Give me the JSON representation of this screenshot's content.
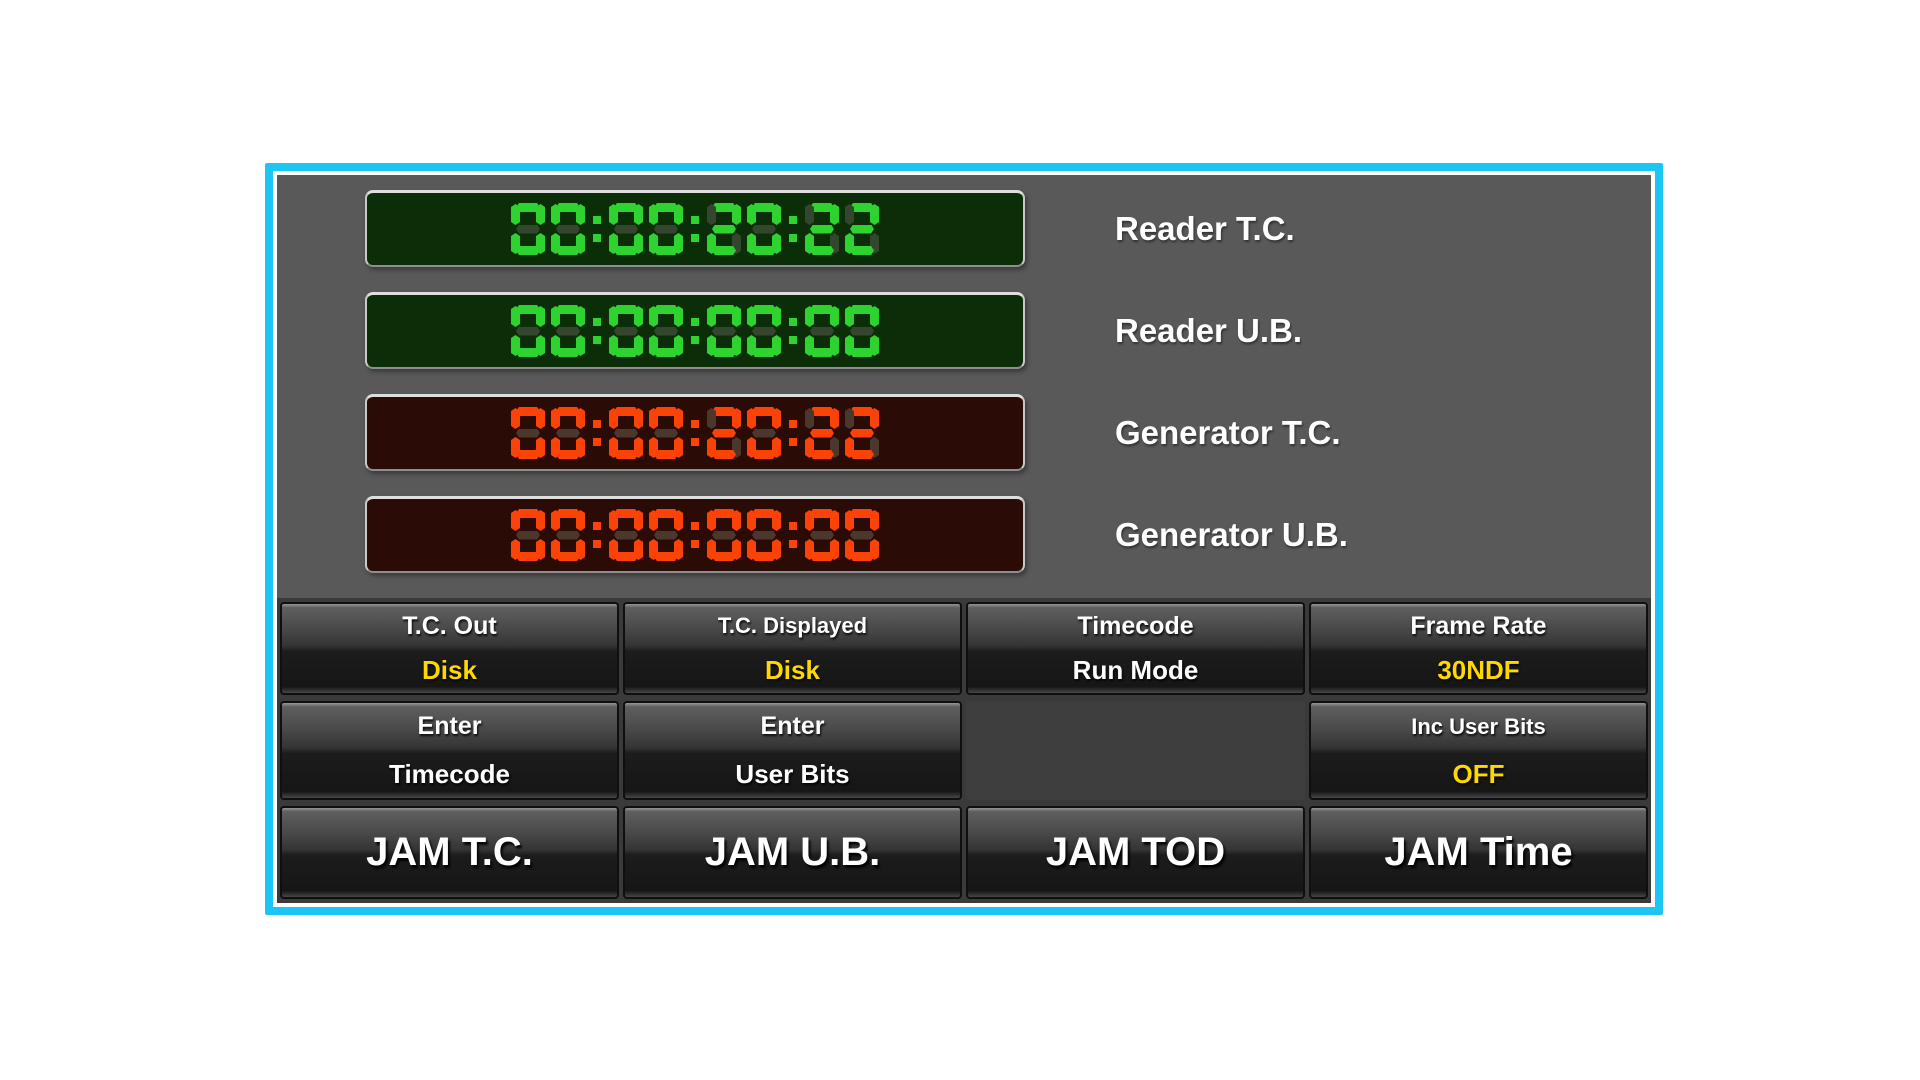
{
  "panel": {
    "colors": {
      "border_cyan": "#1bc7f2",
      "body_gray": "#595959",
      "led_green": "#2fd32f",
      "led_green_bg": "#0b2d07",
      "led_red": "#fb4207",
      "led_red_bg": "#2b0b05",
      "value_yellow": "#ffd800"
    },
    "displays": [
      {
        "value": "00:00:20:22",
        "label": "Reader T.C.",
        "color": "green"
      },
      {
        "value": "00:00:00:00",
        "label": "Reader U.B.",
        "color": "green"
      },
      {
        "value": "00:00:20:22",
        "label": "Generator T.C.",
        "color": "red"
      },
      {
        "value": "00:00:00:00",
        "label": "Generator U.B.",
        "color": "red"
      }
    ],
    "buttons": {
      "row1": [
        {
          "line1": "T.C. Out",
          "line2": "Disk",
          "line2_color": "yellow"
        },
        {
          "line1": "T.C. Displayed",
          "line2": "Disk",
          "line2_color": "yellow"
        },
        {
          "line1": "Timecode",
          "line2": "Run Mode",
          "line2_color": "white"
        },
        {
          "line1": "Frame Rate",
          "line2": "30NDF",
          "line2_color": "yellow"
        }
      ],
      "row2": [
        {
          "line1": "Enter",
          "line2": "Timecode",
          "line2_color": "white"
        },
        {
          "line1": "Enter",
          "line2": "User Bits",
          "line2_color": "white"
        },
        {
          "line1": "Inc User Bits",
          "line2": "OFF",
          "line2_color": "yellow"
        }
      ],
      "row3": [
        {
          "label": "JAM T.C."
        },
        {
          "label": "JAM U.B."
        },
        {
          "label": "JAM TOD"
        },
        {
          "label": "JAM Time"
        }
      ]
    }
  }
}
